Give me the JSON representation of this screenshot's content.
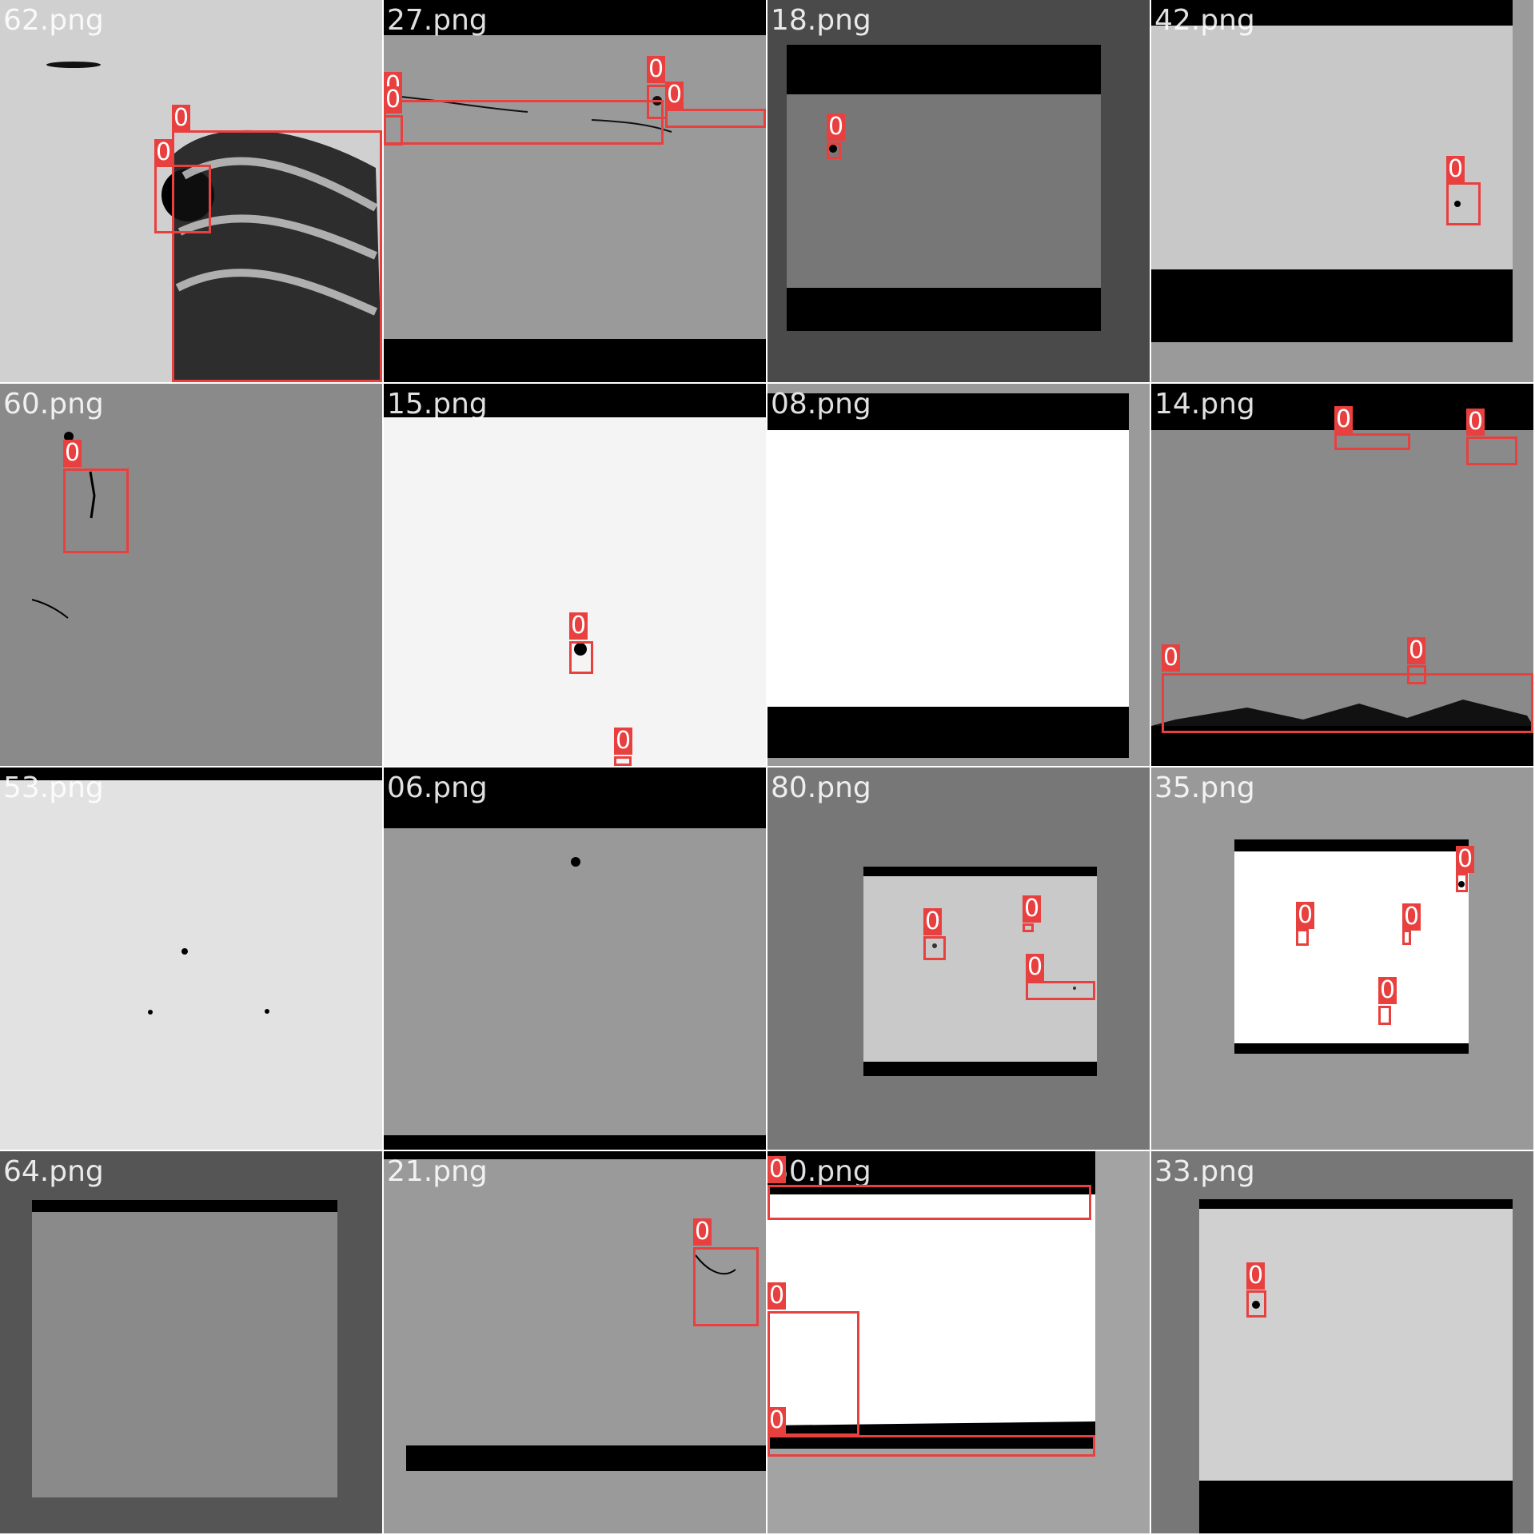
{
  "grid": {
    "accent_color": "#e8403f",
    "tiles": [
      {
        "filename": "62.png",
        "detections": [
          "0",
          "0"
        ]
      },
      {
        "filename": "27.png",
        "detections": [
          "0",
          "0",
          "0",
          "0"
        ]
      },
      {
        "filename": "18.png",
        "detections": [
          "0"
        ]
      },
      {
        "filename": "42.png",
        "detections": [
          "0"
        ]
      },
      {
        "filename": "60.png",
        "detections": [
          "0"
        ]
      },
      {
        "filename": "15.png",
        "detections": [
          "0",
          "0"
        ]
      },
      {
        "filename": "08.png",
        "detections": []
      },
      {
        "filename": "14.png",
        "detections": [
          "0",
          "0",
          "0",
          "0"
        ]
      },
      {
        "filename": "53.png",
        "detections": []
      },
      {
        "filename": "06.png",
        "detections": []
      },
      {
        "filename": "80.png",
        "detections": [
          "0",
          "0",
          "0"
        ]
      },
      {
        "filename": "35.png",
        "detections": [
          "0",
          "0",
          "0",
          "0"
        ]
      },
      {
        "filename": "64.png",
        "detections": []
      },
      {
        "filename": "21.png",
        "detections": [
          "0"
        ]
      },
      {
        "filename": "50.png",
        "detections": [
          "0",
          "0",
          "0"
        ]
      },
      {
        "filename": "33.png",
        "detections": [
          "0"
        ]
      }
    ]
  }
}
